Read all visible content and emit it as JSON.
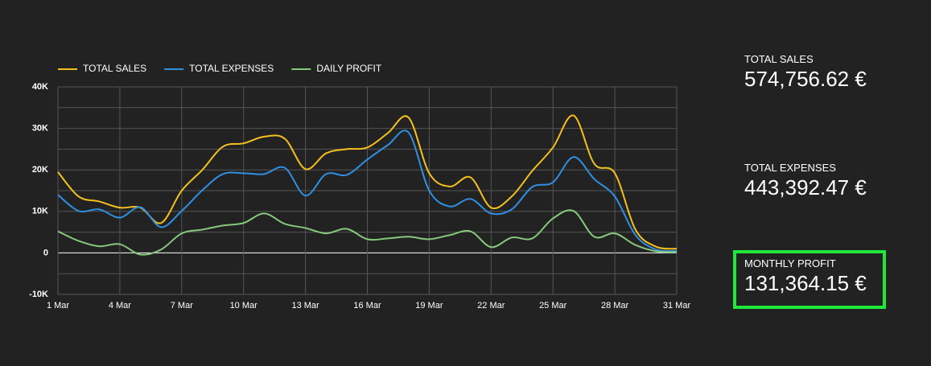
{
  "chart_data": {
    "type": "line",
    "categories": [
      "1 Mar",
      null,
      null,
      "4 Mar",
      null,
      null,
      "7 Mar",
      null,
      null,
      "10 Mar",
      null,
      null,
      "13 Mar",
      null,
      null,
      "16 Mar",
      null,
      null,
      "19 Mar",
      null,
      null,
      "22 Mar",
      null,
      null,
      "25 Mar",
      null,
      null,
      "28 Mar",
      null,
      null,
      "31 Mar"
    ],
    "series": [
      {
        "name": "TOTAL SALES",
        "color": "#f4c01e",
        "values": [
          19500,
          13600,
          12400,
          10900,
          10900,
          7200,
          15000,
          20000,
          25600,
          26400,
          28000,
          27500,
          20200,
          24000,
          25000,
          25400,
          28900,
          32600,
          19200,
          16000,
          18200,
          10900,
          13600,
          19800,
          25400,
          33100,
          21500,
          19200,
          5600,
          1500,
          1000
        ]
      },
      {
        "name": "TOTAL EXPENSES",
        "color": "#2f8fe0",
        "values": [
          14000,
          10100,
          10500,
          8500,
          11000,
          6200,
          10100,
          15100,
          19000,
          19200,
          19000,
          20500,
          13800,
          19000,
          18800,
          22500,
          26000,
          29000,
          15000,
          11200,
          13000,
          9500,
          10500,
          15900,
          17000,
          23100,
          17800,
          13600,
          4300,
          800,
          500
        ]
      },
      {
        "name": "DAILY PROFIT",
        "color": "#86c97c",
        "values": [
          5200,
          2900,
          1600,
          2100,
          -400,
          800,
          4700,
          5600,
          6600,
          7200,
          9500,
          7000,
          6000,
          4700,
          5800,
          3300,
          3500,
          3900,
          3300,
          4300,
          5200,
          1400,
          3700,
          3500,
          8300,
          10100,
          3900,
          4700,
          1900,
          400,
          200
        ]
      }
    ],
    "ylim": [
      -10000,
      40000
    ],
    "yticks": [
      {
        "value": -10000,
        "label": "-10K"
      },
      0,
      {
        "value": 10000,
        "label": "10K"
      },
      {
        "value": 20000,
        "label": "20K"
      },
      {
        "value": 30000,
        "label": "30K"
      },
      {
        "value": 40000,
        "label": "40K"
      }
    ],
    "grid": true
  },
  "kpis": [
    {
      "label": "TOTAL SALES",
      "value": "574,756.62 €"
    },
    {
      "label": "TOTAL EXPENSES",
      "value": "443,392.47 €"
    },
    {
      "label": "MONTHLY PROFIT",
      "value": "131,364.15 €"
    }
  ]
}
